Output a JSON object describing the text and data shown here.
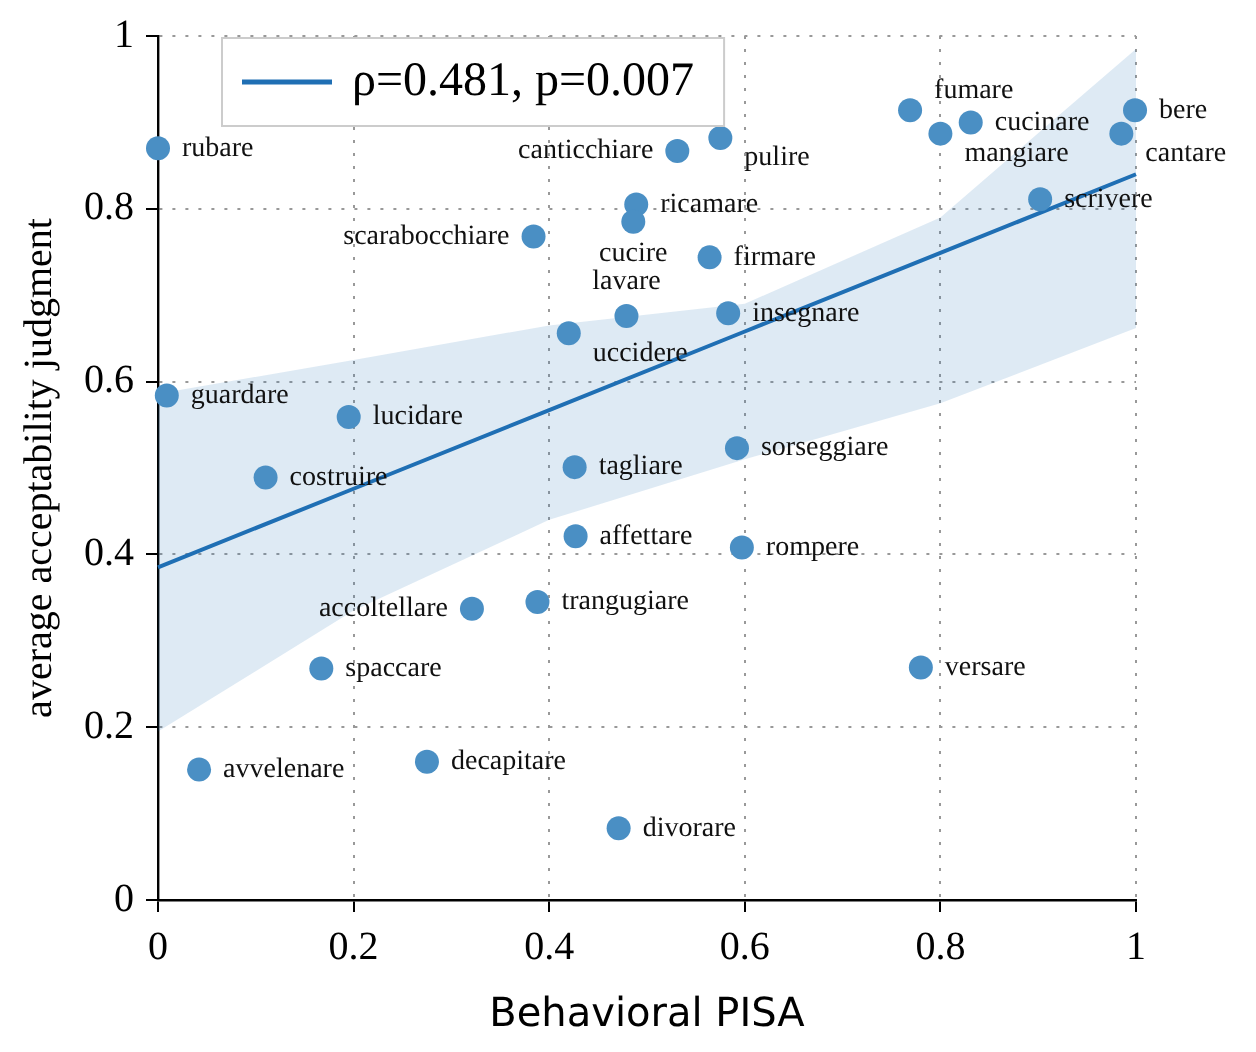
{
  "chart_data": {
    "type": "scatter",
    "xlabel": "Behavioral PISA",
    "ylabel": "average acceptability judgment",
    "xlim": [
      0,
      1
    ],
    "ylim": [
      0,
      1
    ],
    "xticks": [
      0,
      0.2,
      0.4,
      0.6,
      0.8,
      1
    ],
    "yticks": [
      0,
      0.2,
      0.4,
      0.6,
      0.8,
      1
    ],
    "grid": true,
    "legend": "top left",
    "marker": "circle",
    "series": [
      {
        "color": "#4a8fc4",
        "x": [
          0.0,
          0.575,
          0.531,
          0.769,
          0.8,
          0.831,
          0.999,
          0.985,
          0.489,
          0.486,
          0.384,
          0.564,
          0.902,
          0.479,
          0.583,
          0.42,
          0.009,
          0.195,
          0.11,
          0.426,
          0.592,
          0.427,
          0.597,
          0.321,
          0.388,
          0.167,
          0.78,
          0.042,
          0.275,
          0.471
        ],
        "values": [
          0.87,
          0.882,
          0.867,
          0.914,
          0.887,
          0.9,
          0.914,
          0.887,
          0.805,
          0.785,
          0.768,
          0.744,
          0.811,
          0.676,
          0.679,
          0.656,
          0.584,
          0.559,
          0.489,
          0.501,
          0.523,
          0.421,
          0.408,
          0.337,
          0.345,
          0.268,
          0.269,
          0.151,
          0.16,
          0.083
        ]
      },
      {
        "type": "line",
        "name": "ρ=0.481, p=0.007",
        "color": "#1f6fb4",
        "line_style": "solid",
        "marker": "none",
        "x": [
          0,
          0.2,
          0.4,
          0.6,
          0.8,
          1
        ],
        "values": [
          0.385,
          0.476,
          0.567,
          0.658,
          0.749,
          0.84
        ],
        "lower": [
          0.195,
          0.335,
          0.44,
          0.51,
          0.575,
          0.662
        ],
        "upper": [
          0.586,
          0.625,
          0.665,
          0.69,
          0.79,
          0.985
        ]
      }
    ],
    "annotations": [
      {
        "text": "rubare",
        "x": 0.0,
        "y": 0.87
      },
      {
        "text": "pulire",
        "x": 0.575,
        "y": 0.882
      },
      {
        "text": "canticchiare",
        "x": 0.531,
        "y": 0.867
      },
      {
        "text": "fumare",
        "x": 0.769,
        "y": 0.914
      },
      {
        "text": "mangiare",
        "x": 0.8,
        "y": 0.887
      },
      {
        "text": "cucinare",
        "x": 0.831,
        "y": 0.9
      },
      {
        "text": "bere",
        "x": 0.999,
        "y": 0.914
      },
      {
        "text": "cantare",
        "x": 0.985,
        "y": 0.887
      },
      {
        "text": "ricamare",
        "x": 0.489,
        "y": 0.805
      },
      {
        "text": "cucire",
        "x": 0.486,
        "y": 0.785
      },
      {
        "text": "scarabocchiare",
        "x": 0.384,
        "y": 0.768
      },
      {
        "text": "firmare",
        "x": 0.564,
        "y": 0.744
      },
      {
        "text": "scrivere",
        "x": 0.902,
        "y": 0.811
      },
      {
        "text": "lavare",
        "x": 0.479,
        "y": 0.676
      },
      {
        "text": "insegnare",
        "x": 0.583,
        "y": 0.679
      },
      {
        "text": "uccidere",
        "x": 0.42,
        "y": 0.656
      },
      {
        "text": "guardare",
        "x": 0.009,
        "y": 0.584
      },
      {
        "text": "lucidare",
        "x": 0.195,
        "y": 0.559
      },
      {
        "text": "costruire",
        "x": 0.11,
        "y": 0.489
      },
      {
        "text": "tagliare",
        "x": 0.426,
        "y": 0.501
      },
      {
        "text": "sorseggiare",
        "x": 0.592,
        "y": 0.523
      },
      {
        "text": "affettare",
        "x": 0.427,
        "y": 0.421
      },
      {
        "text": "rompere",
        "x": 0.597,
        "y": 0.408
      },
      {
        "text": "accoltellare",
        "x": 0.321,
        "y": 0.337
      },
      {
        "text": "trangugiare",
        "x": 0.388,
        "y": 0.345
      },
      {
        "text": "spaccare",
        "x": 0.167,
        "y": 0.268
      },
      {
        "text": "versare",
        "x": 0.78,
        "y": 0.269
      },
      {
        "text": "avvelenare",
        "x": 0.042,
        "y": 0.151
      },
      {
        "text": "decapitare",
        "x": 0.275,
        "y": 0.16
      },
      {
        "text": "divorare",
        "x": 0.471,
        "y": 0.083
      }
    ]
  }
}
